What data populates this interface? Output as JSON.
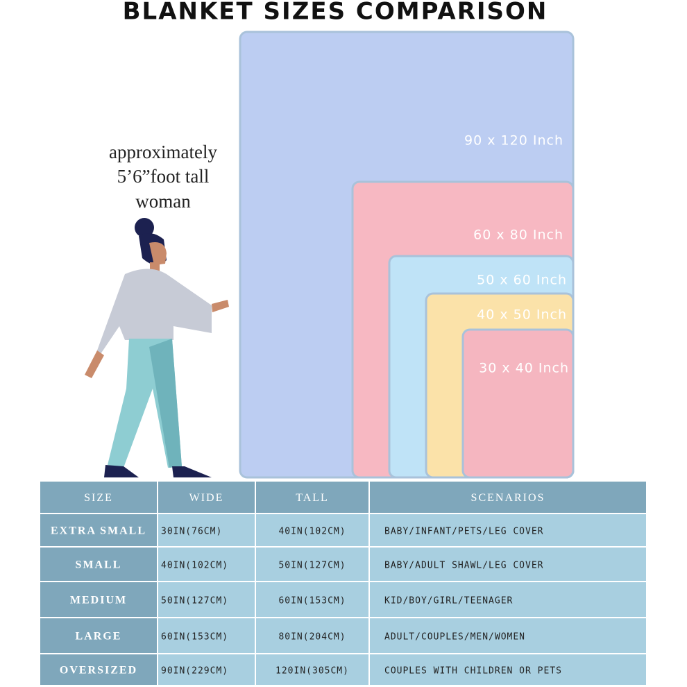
{
  "title": "BLANKET SIZES COMPARISON",
  "caption": [
    "approximately",
    "5’6”foot tall",
    "woman"
  ],
  "blankets": [
    "90 x 120 Inch",
    "60 x 80 Inch",
    "50 x 60 Inch",
    "40 x 50 Inch",
    "30 x 40 Inch"
  ],
  "table": {
    "header": [
      "SIZE",
      "WIDE",
      "TALL",
      "SCENARIOS"
    ],
    "rows": [
      [
        "EXTRA SMALL",
        "30IN(76CM)",
        "40IN(102CM)",
        "BABY/INFANT/PETS/LEG COVER"
      ],
      [
        "SMALL",
        "40IN(102CM)",
        "50IN(127CM)",
        "BABY/ADULT SHAWL/LEG COVER"
      ],
      [
        "MEDIUM",
        "50IN(127CM)",
        "60IN(153CM)",
        "KID/BOY/GIRL/TEENAGER"
      ],
      [
        "LARGE",
        "60IN(153CM)",
        "80IN(204CM)",
        "ADULT/COUPLES/MEN/WOMEN"
      ],
      [
        "OVERSIZED",
        "90IN(229CM)",
        "120IN(305CM)",
        "COUPLES WITH CHILDREN OR PETS"
      ]
    ]
  }
}
